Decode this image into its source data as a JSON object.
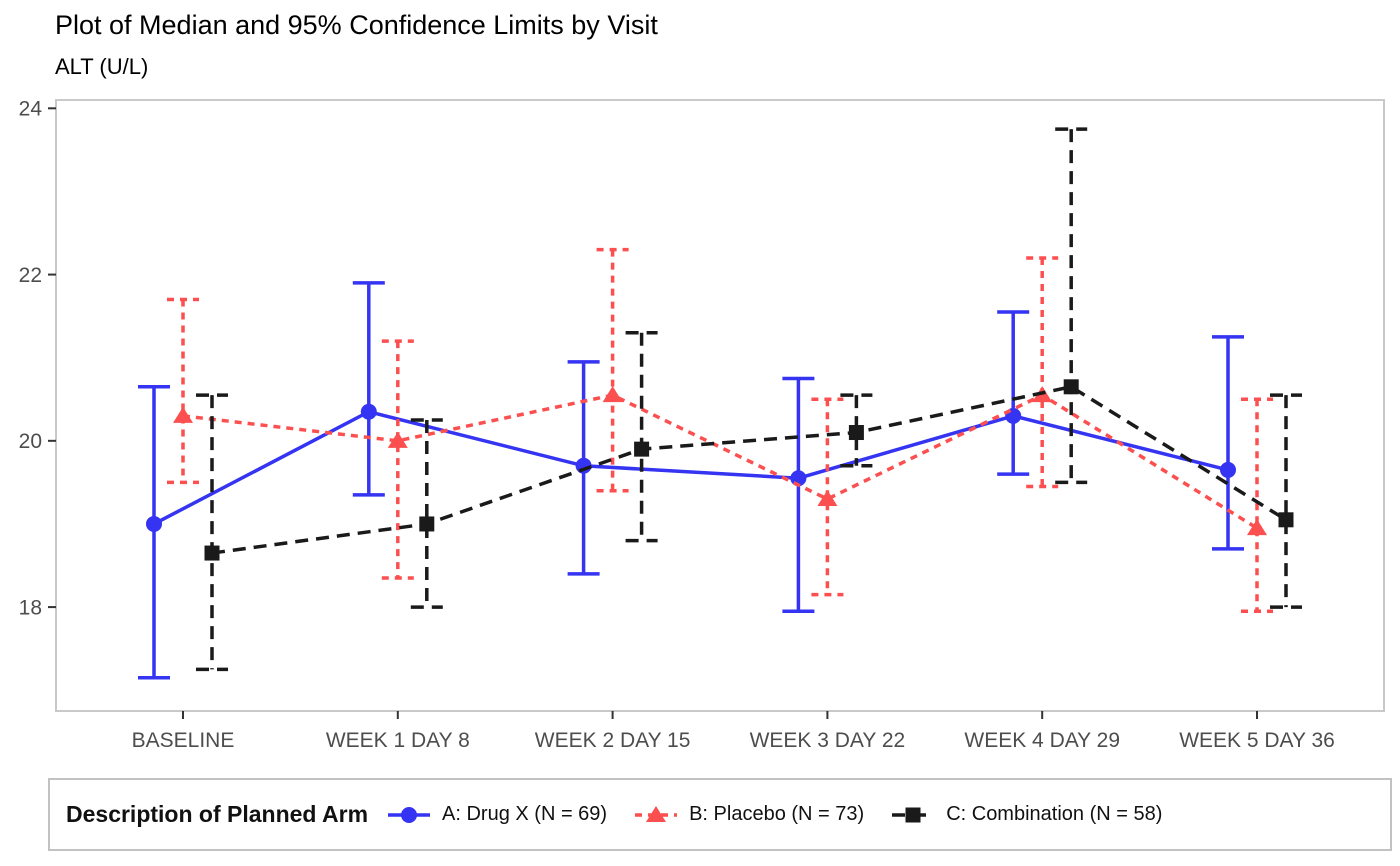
{
  "title": "Plot of Median and 95% Confidence Limits by Visit",
  "subtitle": "ALT (U/L)",
  "legend": {
    "title": "Description of Planned Arm"
  },
  "colors": {
    "plot_border": "#c9c9c9",
    "axis_tick": "#333333",
    "tick_label_text": "#4d4d4d",
    "background": "#ffffff",
    "series_a_blue": "#3434f2",
    "series_b_red": "#fc4f4f",
    "series_c_black": "#1a1a1a"
  },
  "chart_data": {
    "type": "line",
    "title": "Plot of Median and 95% Confidence Limits by Visit",
    "ylabel": "ALT (U/L)",
    "xlabel": "",
    "grid": false,
    "legend_position": "bottom",
    "ylim": [
      16.75,
      24.1
    ],
    "yticks": [
      18,
      20,
      22,
      24
    ],
    "categories": [
      "BASELINE",
      "WEEK 1 DAY 8",
      "WEEK 2 DAY 15",
      "WEEK 3 DAY 22",
      "WEEK 4 DAY 29",
      "WEEK 5 DAY 36"
    ],
    "series": [
      {
        "name": "A: Drug X (N = 69)",
        "color": "#3434f2",
        "marker": "circle",
        "line_style": "solid",
        "medians": [
          19.0,
          20.35,
          19.7,
          19.55,
          20.3,
          19.65
        ],
        "ci_lower": [
          17.15,
          19.35,
          18.4,
          17.95,
          19.6,
          18.7
        ],
        "ci_upper": [
          20.65,
          21.9,
          20.95,
          20.75,
          21.55,
          21.25
        ]
      },
      {
        "name": "B: Placebo (N = 73)",
        "color": "#fc4f4f",
        "marker": "triangle",
        "line_style": "dashed-short",
        "medians": [
          20.3,
          20.0,
          20.55,
          19.3,
          20.55,
          18.95
        ],
        "ci_lower": [
          19.5,
          18.35,
          19.4,
          18.15,
          19.45,
          17.95
        ],
        "ci_upper": [
          21.7,
          21.2,
          22.3,
          20.5,
          22.2,
          20.5
        ]
      },
      {
        "name": "C: Combination (N = 58)",
        "color": "#1a1a1a",
        "marker": "square",
        "line_style": "dashed-long",
        "medians": [
          18.65,
          19.0,
          19.9,
          20.1,
          20.65,
          19.05
        ],
        "ci_lower": [
          17.25,
          18.0,
          18.8,
          19.7,
          19.5,
          18.0
        ],
        "ci_upper": [
          20.55,
          20.25,
          21.3,
          20.55,
          23.75,
          20.55
        ]
      }
    ]
  }
}
